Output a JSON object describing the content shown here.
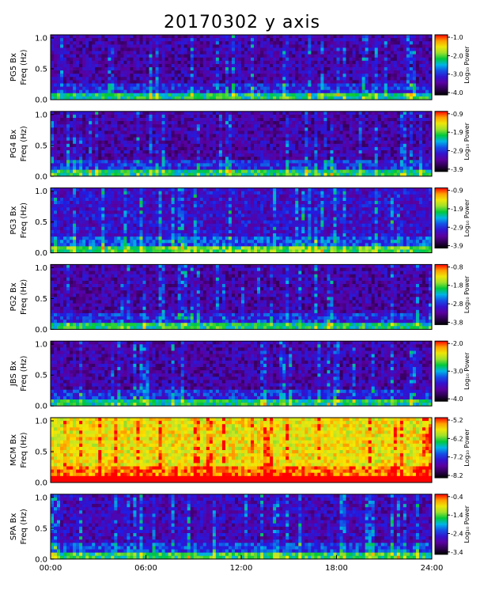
{
  "chart_data": {
    "type": "heatmap",
    "title": "20170302 y axis",
    "xlim": [
      "00:00",
      "24:00"
    ],
    "xticks": [
      "00:00",
      "06:00",
      "12:00",
      "18:00",
      "24:00"
    ],
    "ylim": [
      0.0,
      1.0
    ],
    "yticks": [
      "0.0",
      "0.5",
      "1.0"
    ],
    "colorbar_label": "Log₁₀ Power",
    "panels": [
      {
        "station": "PG5 Bx",
        "ylabel": "Freq (Hz)",
        "cbar_ticks": [
          "-1.0",
          "-2.0",
          "-3.0",
          "-4.0"
        ],
        "cbar_range": [
          -4.0,
          -1.0
        ],
        "level": 0.22
      },
      {
        "station": "PG4 Bx",
        "ylabel": "Freq (Hz)",
        "cbar_ticks": [
          "-0.9",
          "-1.9",
          "-2.9",
          "-3.9"
        ],
        "cbar_range": [
          -3.9,
          -0.9
        ],
        "level": 0.22
      },
      {
        "station": "PG3 Bx",
        "ylabel": "Freq (Hz)",
        "cbar_ticks": [
          "-0.9",
          "-1.9",
          "-2.9",
          "-3.9"
        ],
        "cbar_range": [
          -3.9,
          -0.9
        ],
        "level": 0.28
      },
      {
        "station": "PG2 Bx",
        "ylabel": "Freq (Hz)",
        "cbar_ticks": [
          "-0.8",
          "-1.8",
          "-2.8",
          "-3.8"
        ],
        "cbar_range": [
          -3.8,
          -0.8
        ],
        "level": 0.22
      },
      {
        "station": "JBS Bx",
        "ylabel": "Freq (Hz)",
        "cbar_ticks": [
          "-2.0",
          "-3.0",
          "-4.0"
        ],
        "cbar_range": [
          -4.0,
          -2.0
        ],
        "level": 0.22
      },
      {
        "station": "MCM Bx",
        "ylabel": "Freq (Hz)",
        "cbar_ticks": [
          "-5.2",
          "-6.2",
          "-7.2",
          "-8.2"
        ],
        "cbar_range": [
          -8.2,
          -5.2
        ],
        "level": 0.8
      },
      {
        "station": "SPA Bx",
        "ylabel": "Freq (Hz)",
        "cbar_ticks": [
          "-0.4",
          "-1.4",
          "-2.4",
          "-3.4"
        ],
        "cbar_range": [
          -3.4,
          -0.4
        ],
        "level": 0.25
      }
    ]
  }
}
